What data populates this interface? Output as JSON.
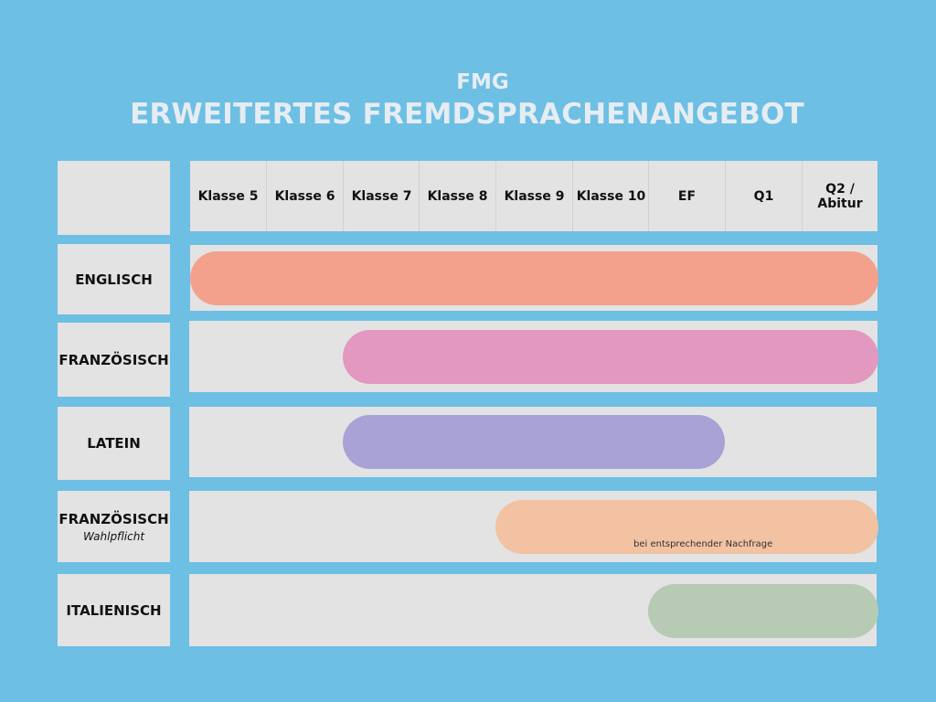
{
  "header": {
    "subtitle": "FMG",
    "title": "ERWEITERTES FREMDSPRACHENANGEBOT"
  },
  "columns": [
    "Klasse 5",
    "Klasse 6",
    "Klasse 7",
    "Klasse 8",
    "Klasse 9",
    "Klasse 10",
    "EF",
    "Q1",
    "Q2 / Abitur"
  ],
  "languages": [
    {
      "name": "ENGLISCH",
      "sub": "",
      "start": "Klasse 5",
      "end": "Q2 / Abitur",
      "color": "#f3a08c",
      "note": ""
    },
    {
      "name": "FRANZÖSISCH",
      "sub": "",
      "start": "Klasse 7",
      "end": "Q2 / Abitur",
      "color": "#e298bf",
      "note": ""
    },
    {
      "name": "LATEIN",
      "sub": "",
      "start": "Klasse 7",
      "end": "EF",
      "color": "#a8a2d6",
      "note": ""
    },
    {
      "name": "FRANZÖSISCH",
      "sub": "Wahlpflicht",
      "start": "Klasse 9",
      "end": "Q2 / Abitur",
      "color": "#f2c2a2",
      "note": "bei entsprechender Nachfrage"
    },
    {
      "name": "ITALIENISCH",
      "sub": "",
      "start": "EF",
      "end": "Q2 / Abitur",
      "color": "#b7cab4",
      "note": ""
    }
  ],
  "colors": {
    "background": "#6dbfe4",
    "cell": "#e3e3e3",
    "title": "#e6edf2"
  }
}
